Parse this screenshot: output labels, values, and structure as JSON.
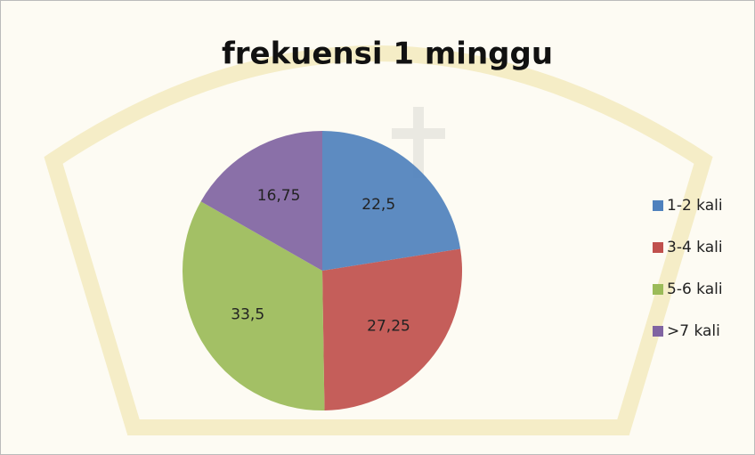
{
  "chart_data": {
    "type": "pie",
    "title": "frekuensi 1 minggu",
    "categories": [
      "1-2 kali",
      "3-4 kali",
      "5-6 kali",
      ">7 kali"
    ],
    "values": [
      22.5,
      27.25,
      33.5,
      16.75
    ],
    "value_labels": [
      "22,5",
      "27,25",
      "33,5",
      "16,75"
    ],
    "colors": [
      "#4f81bd",
      "#c0504d",
      "#9bbb59",
      "#8064a2"
    ],
    "legend": "right"
  }
}
